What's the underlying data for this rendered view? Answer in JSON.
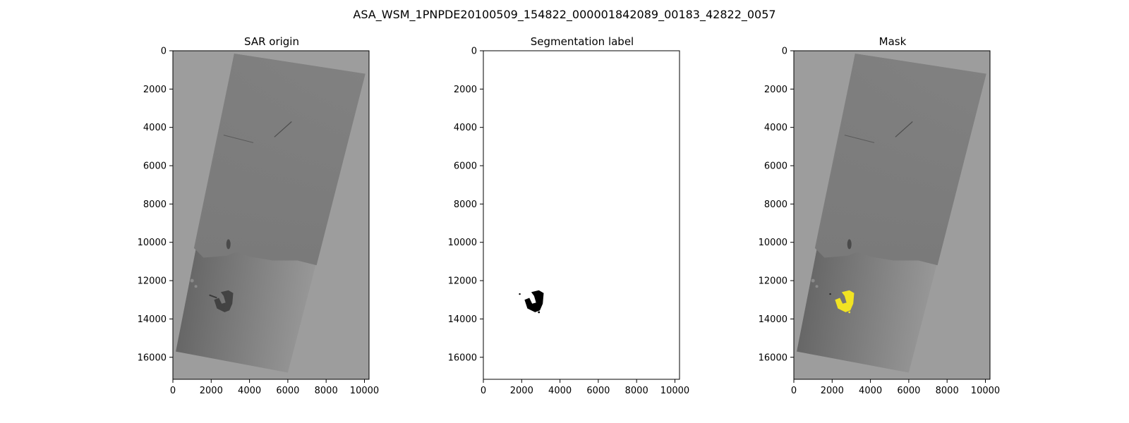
{
  "figure": {
    "suptitle": "ASA_WSM_1PNPDE20100509_154822_000001842089_00183_42822_0057"
  },
  "chart_data": [
    {
      "type": "image",
      "title": "SAR origin",
      "xlim": [
        0,
        10240
      ],
      "ylim": [
        17150,
        0
      ],
      "xticks": [
        0,
        2000,
        4000,
        6000,
        8000,
        10000
      ],
      "yticks": [
        0,
        2000,
        4000,
        6000,
        8000,
        10000,
        12000,
        14000,
        16000
      ],
      "xtick_labels": [
        "0",
        "2000",
        "4000",
        "6000",
        "8000",
        "10000"
      ],
      "ytick_labels": [
        "0",
        "2000",
        "4000",
        "6000",
        "8000",
        "10000",
        "12000",
        "14000",
        "16000"
      ],
      "colors": {
        "background": "#9d9d9d",
        "land": "#7a7a7a",
        "sea_dark": "#555555",
        "sea_light": "#a3a3a3",
        "slick": "#3a3a3a"
      }
    },
    {
      "type": "image",
      "title": "Segmentation label",
      "xlim": [
        0,
        10240
      ],
      "ylim": [
        17150,
        0
      ],
      "xticks": [
        0,
        2000,
        4000,
        6000,
        8000,
        10000
      ],
      "yticks": [
        0,
        2000,
        4000,
        6000,
        8000,
        10000,
        12000,
        14000,
        16000
      ],
      "xtick_labels": [
        "0",
        "2000",
        "4000",
        "6000",
        "8000",
        "10000"
      ],
      "ytick_labels": [
        "0",
        "2000",
        "4000",
        "6000",
        "8000",
        "10000",
        "12000",
        "14000",
        "16000"
      ],
      "colors": {
        "background": "#ffffff",
        "slick": "#000000"
      }
    },
    {
      "type": "image",
      "title": "Mask",
      "xlim": [
        0,
        10240
      ],
      "ylim": [
        17150,
        0
      ],
      "xticks": [
        0,
        2000,
        4000,
        6000,
        8000,
        10000
      ],
      "yticks": [
        0,
        2000,
        4000,
        6000,
        8000,
        10000,
        12000,
        14000,
        16000
      ],
      "xtick_labels": [
        "0",
        "2000",
        "4000",
        "6000",
        "8000",
        "10000"
      ],
      "ytick_labels": [
        "0",
        "2000",
        "4000",
        "6000",
        "8000",
        "10000",
        "12000",
        "14000",
        "16000"
      ],
      "colors": {
        "background": "#9d9d9d",
        "land": "#7a7a7a",
        "sea_dark": "#555555",
        "sea_light": "#a3a3a3",
        "slick": "#f1e323"
      }
    }
  ]
}
